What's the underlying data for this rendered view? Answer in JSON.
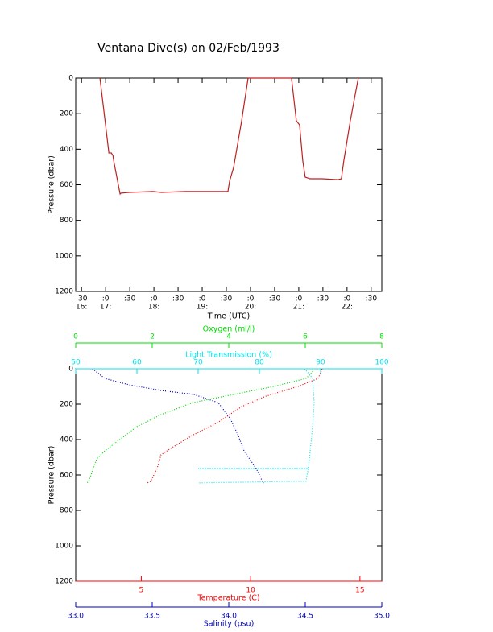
{
  "chart_data": [
    {
      "type": "line",
      "title": "Ventana Dive(s) on 02/Feb/1993",
      "xlabel": "Time (UTC)",
      "ylabel": "Pressure (dbar)",
      "x": [
        16.883,
        17.067,
        17.117,
        17.15,
        17.167,
        17.3,
        17.317,
        17.483,
        17.983,
        18.15,
        18.65,
        18.983,
        19.533,
        19.567,
        19.65,
        19.817,
        19.95,
        20.483,
        20.85,
        20.95,
        21.017,
        21.083,
        21.133,
        21.233,
        21.483,
        21.817,
        21.883,
        21.933,
        22.067,
        22.233
      ],
      "series": [
        {
          "color": "#c02020",
          "values": [
            0,
            421,
            421,
            435,
            466,
            652,
            647,
            643,
            638,
            643,
            638,
            638,
            638,
            580,
            503,
            240,
            0,
            0,
            0,
            240,
            263,
            466,
            557,
            566,
            566,
            571,
            566,
            466,
            240,
            0
          ]
        }
      ],
      "xlim": [
        16.38,
        22.72
      ],
      "xticks": [
        {
          "value": 16.5,
          "label": ":30"
        },
        {
          "value": 17,
          "label": ":0"
        },
        {
          "value": 17.5,
          "label": ":30"
        },
        {
          "value": 18,
          "label": ":0"
        },
        {
          "value": 18.5,
          "label": ":30"
        },
        {
          "value": 19,
          "label": ":0"
        },
        {
          "value": 19.5,
          "label": ":30"
        },
        {
          "value": 20,
          "label": ":0"
        },
        {
          "value": 20.5,
          "label": ":30"
        },
        {
          "value": 21,
          "label": ":0"
        },
        {
          "value": 21.5,
          "label": ":30"
        },
        {
          "value": 22,
          "label": ":0"
        },
        {
          "value": 22.5,
          "label": ":30"
        }
      ],
      "xtick_hours": [
        {
          "value": 16.5,
          "label": "16:"
        },
        {
          "value": 17,
          "label": "17:"
        },
        {
          "value": 18,
          "label": "18:"
        },
        {
          "value": 19,
          "label": "19:"
        },
        {
          "value": 20,
          "label": "20:"
        },
        {
          "value": 21,
          "label": "21:"
        },
        {
          "value": 22,
          "label": "22:"
        }
      ],
      "ylim": [
        0,
        1200
      ],
      "yticks": [
        0,
        200,
        400,
        600,
        800,
        1000,
        1200
      ],
      "y_inverted": true
    },
    {
      "type": "profile",
      "ylabel": "Pressure (dbar)",
      "ylim": [
        0,
        1200
      ],
      "yticks": [
        0,
        200,
        400,
        600,
        800,
        1000,
        1200
      ],
      "y_inverted": true,
      "axes": [
        {
          "label": "Oxygen (ml/l)",
          "color": "#00dd00",
          "position": "top",
          "lim": [
            0,
            8
          ],
          "ticks": [
            0,
            2,
            4,
            6,
            8
          ]
        },
        {
          "label": "Light Transmission (%)",
          "color": "#00e5ee",
          "position": "top",
          "lim": [
            50,
            100
          ],
          "ticks": [
            50,
            60,
            70,
            80,
            90,
            100
          ]
        },
        {
          "label": "Temperature (C)",
          "color": "#ff0000",
          "position": "bottom",
          "lim": [
            2,
            16
          ],
          "ticks": [
            5,
            10,
            15
          ]
        },
        {
          "label": "Salinity (psu)",
          "color": "#0000c0",
          "position": "bottom",
          "lim": [
            33,
            35
          ],
          "ticks": [
            {
              "value": 33,
              "label": "33.0"
            },
            33.5,
            {
              "value": 34,
              "label": "34.0"
            },
            34.5,
            {
              "value": 35,
              "label": "35.0"
            }
          ]
        }
      ],
      "series": [
        {
          "axis": 0,
          "pressure": [
            0,
            18,
            55,
            100,
            145,
            191,
            259,
            327,
            395,
            464,
            509,
            564,
            636,
            645
          ],
          "values": [
            6.2,
            6.19,
            6.02,
            5.18,
            4.13,
            3.07,
            2.23,
            1.6,
            1.18,
            0.76,
            0.55,
            0.46,
            0.34,
            0.29
          ]
        },
        {
          "axis": 1,
          "pressure": [
            0,
            55,
            191,
            327,
            464,
            564,
            564,
            564,
            636,
            636,
            645
          ],
          "values": [
            87.4,
            88.7,
            88.95,
            88.7,
            88.3,
            88.0,
            70,
            88.0,
            87.6,
            85.7,
            70
          ]
        },
        {
          "axis": 2,
          "pressure": [
            0,
            55,
            100,
            155,
            214,
            305,
            373,
            441,
            486,
            564,
            636,
            645
          ],
          "values": [
            13.27,
            13.09,
            12.17,
            10.7,
            9.59,
            8.48,
            7.38,
            6.46,
            5.9,
            5.72,
            5.43,
            5.28
          ]
        },
        {
          "axis": 3,
          "pressure": [
            0,
            55,
            91,
            123,
            145,
            191,
            282,
            373,
            464,
            564,
            636,
            645
          ],
          "values": [
            33.11,
            33.19,
            33.35,
            33.56,
            33.77,
            33.93,
            34.01,
            34.06,
            34.1,
            34.18,
            34.22,
            34.23
          ]
        }
      ]
    }
  ]
}
